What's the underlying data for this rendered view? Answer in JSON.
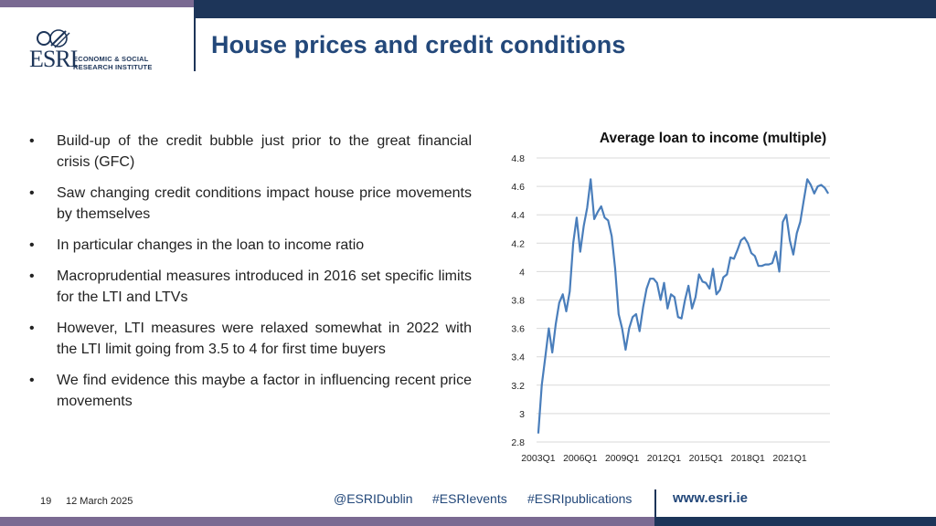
{
  "header": {
    "title": "House prices and credit conditions",
    "logo_abbrev": "ESRI",
    "logo_line1": "ECONOMIC & SOCIAL",
    "logo_line2": "RESEARCH INSTITUTE"
  },
  "bullets": [
    "Build-up of the credit bubble just prior to the great financial crisis (GFC)",
    "Saw changing credit conditions impact house price movements by themselves",
    "In particular changes in the loan to income ratio",
    "Macroprudential measures introduced in 2016 set specific limits for the LTI and LTVs",
    "However, LTI measures were relaxed somewhat in 2022 with the LTI limit going from 3.5 to 4 for first time buyers",
    "We find evidence this maybe a factor in influencing recent price movements"
  ],
  "bullet_symbol": "•",
  "chart_data": {
    "type": "line",
    "title": "Average loan to income (multiple)",
    "ylim": [
      2.8,
      4.8
    ],
    "yticks": [
      "2.8",
      "3",
      "3.2",
      "3.4",
      "3.6",
      "3.8",
      "4",
      "4.2",
      "4.4",
      "4.6",
      "4.8"
    ],
    "xtick_labels": [
      "2003Q1",
      "2006Q1",
      "2009Q1",
      "2012Q1",
      "2015Q1",
      "2018Q1",
      "2021Q1"
    ],
    "start_quarter": "2003Q1",
    "color": "#4a7ebb",
    "series": [
      {
        "values": [
          2.86,
          3.2,
          3.4,
          3.6,
          3.43,
          3.63,
          3.78,
          3.84,
          3.72,
          3.86,
          4.2,
          4.38,
          4.14,
          4.32,
          4.45,
          4.65,
          4.37,
          4.42,
          4.46,
          4.38,
          4.36,
          4.25,
          4.02,
          3.7,
          3.6,
          3.45,
          3.6,
          3.68,
          3.7,
          3.58,
          3.75,
          3.88,
          3.95,
          3.95,
          3.92,
          3.8,
          3.92,
          3.74,
          3.84,
          3.82,
          3.68,
          3.67,
          3.8,
          3.9,
          3.74,
          3.82,
          3.98,
          3.93,
          3.92,
          3.88,
          4.02,
          3.84,
          3.87,
          3.96,
          3.98,
          4.1,
          4.09,
          4.15,
          4.22,
          4.24,
          4.2,
          4.13,
          4.11,
          4.04,
          4.04,
          4.05,
          4.05,
          4.06,
          4.14,
          4.0,
          4.35,
          4.4,
          4.22,
          4.12,
          4.27,
          4.35,
          4.5,
          4.65,
          4.61,
          4.55,
          4.6,
          4.61,
          4.59,
          4.55
        ]
      }
    ]
  },
  "footer": {
    "page_number": "19",
    "date": "12 March 2025",
    "social_1": "@ESRIDublin",
    "social_2": "#ESRIevents",
    "social_3": "#ESRIpublications",
    "website": "www.esri.ie"
  }
}
